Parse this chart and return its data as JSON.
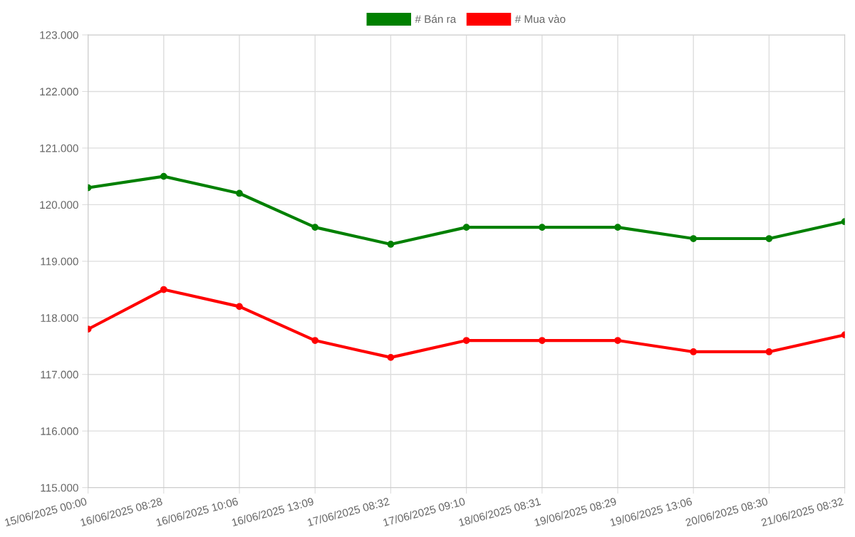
{
  "chart_data": {
    "type": "line",
    "categories": [
      "15/06/2025 00:00",
      "16/06/2025 08:28",
      "16/06/2025 10:06",
      "16/06/2025 13:09",
      "17/06/2025 08:32",
      "17/06/2025 09:10",
      "18/06/2025 08:31",
      "19/06/2025 08:29",
      "19/06/2025 13:06",
      "20/06/2025 08:30",
      "21/06/2025 08:32"
    ],
    "series": [
      {
        "name": "# Bán ra",
        "color": "#008000",
        "values": [
          120300,
          120500,
          120200,
          119600,
          119300,
          119600,
          119600,
          119600,
          119400,
          119400,
          119700
        ]
      },
      {
        "name": "# Mua vào",
        "color": "#ff0000",
        "values": [
          117800,
          118500,
          118200,
          117600,
          117300,
          117600,
          117600,
          117600,
          117400,
          117400,
          117700
        ]
      }
    ],
    "ylim": [
      115000,
      123000
    ],
    "yticks": [
      {
        "value": 115000,
        "label": "115.000"
      },
      {
        "value": 116000,
        "label": "116.000"
      },
      {
        "value": 117000,
        "label": "117.000"
      },
      {
        "value": 118000,
        "label": "118.000"
      },
      {
        "value": 119000,
        "label": "119.000"
      },
      {
        "value": 120000,
        "label": "120.000"
      },
      {
        "value": 121000,
        "label": "121.000"
      },
      {
        "value": 122000,
        "label": "122.000"
      },
      {
        "value": 123000,
        "label": "123.000"
      }
    ],
    "grid": true,
    "legend": "top",
    "marker": "circle",
    "line_style": "solid"
  }
}
